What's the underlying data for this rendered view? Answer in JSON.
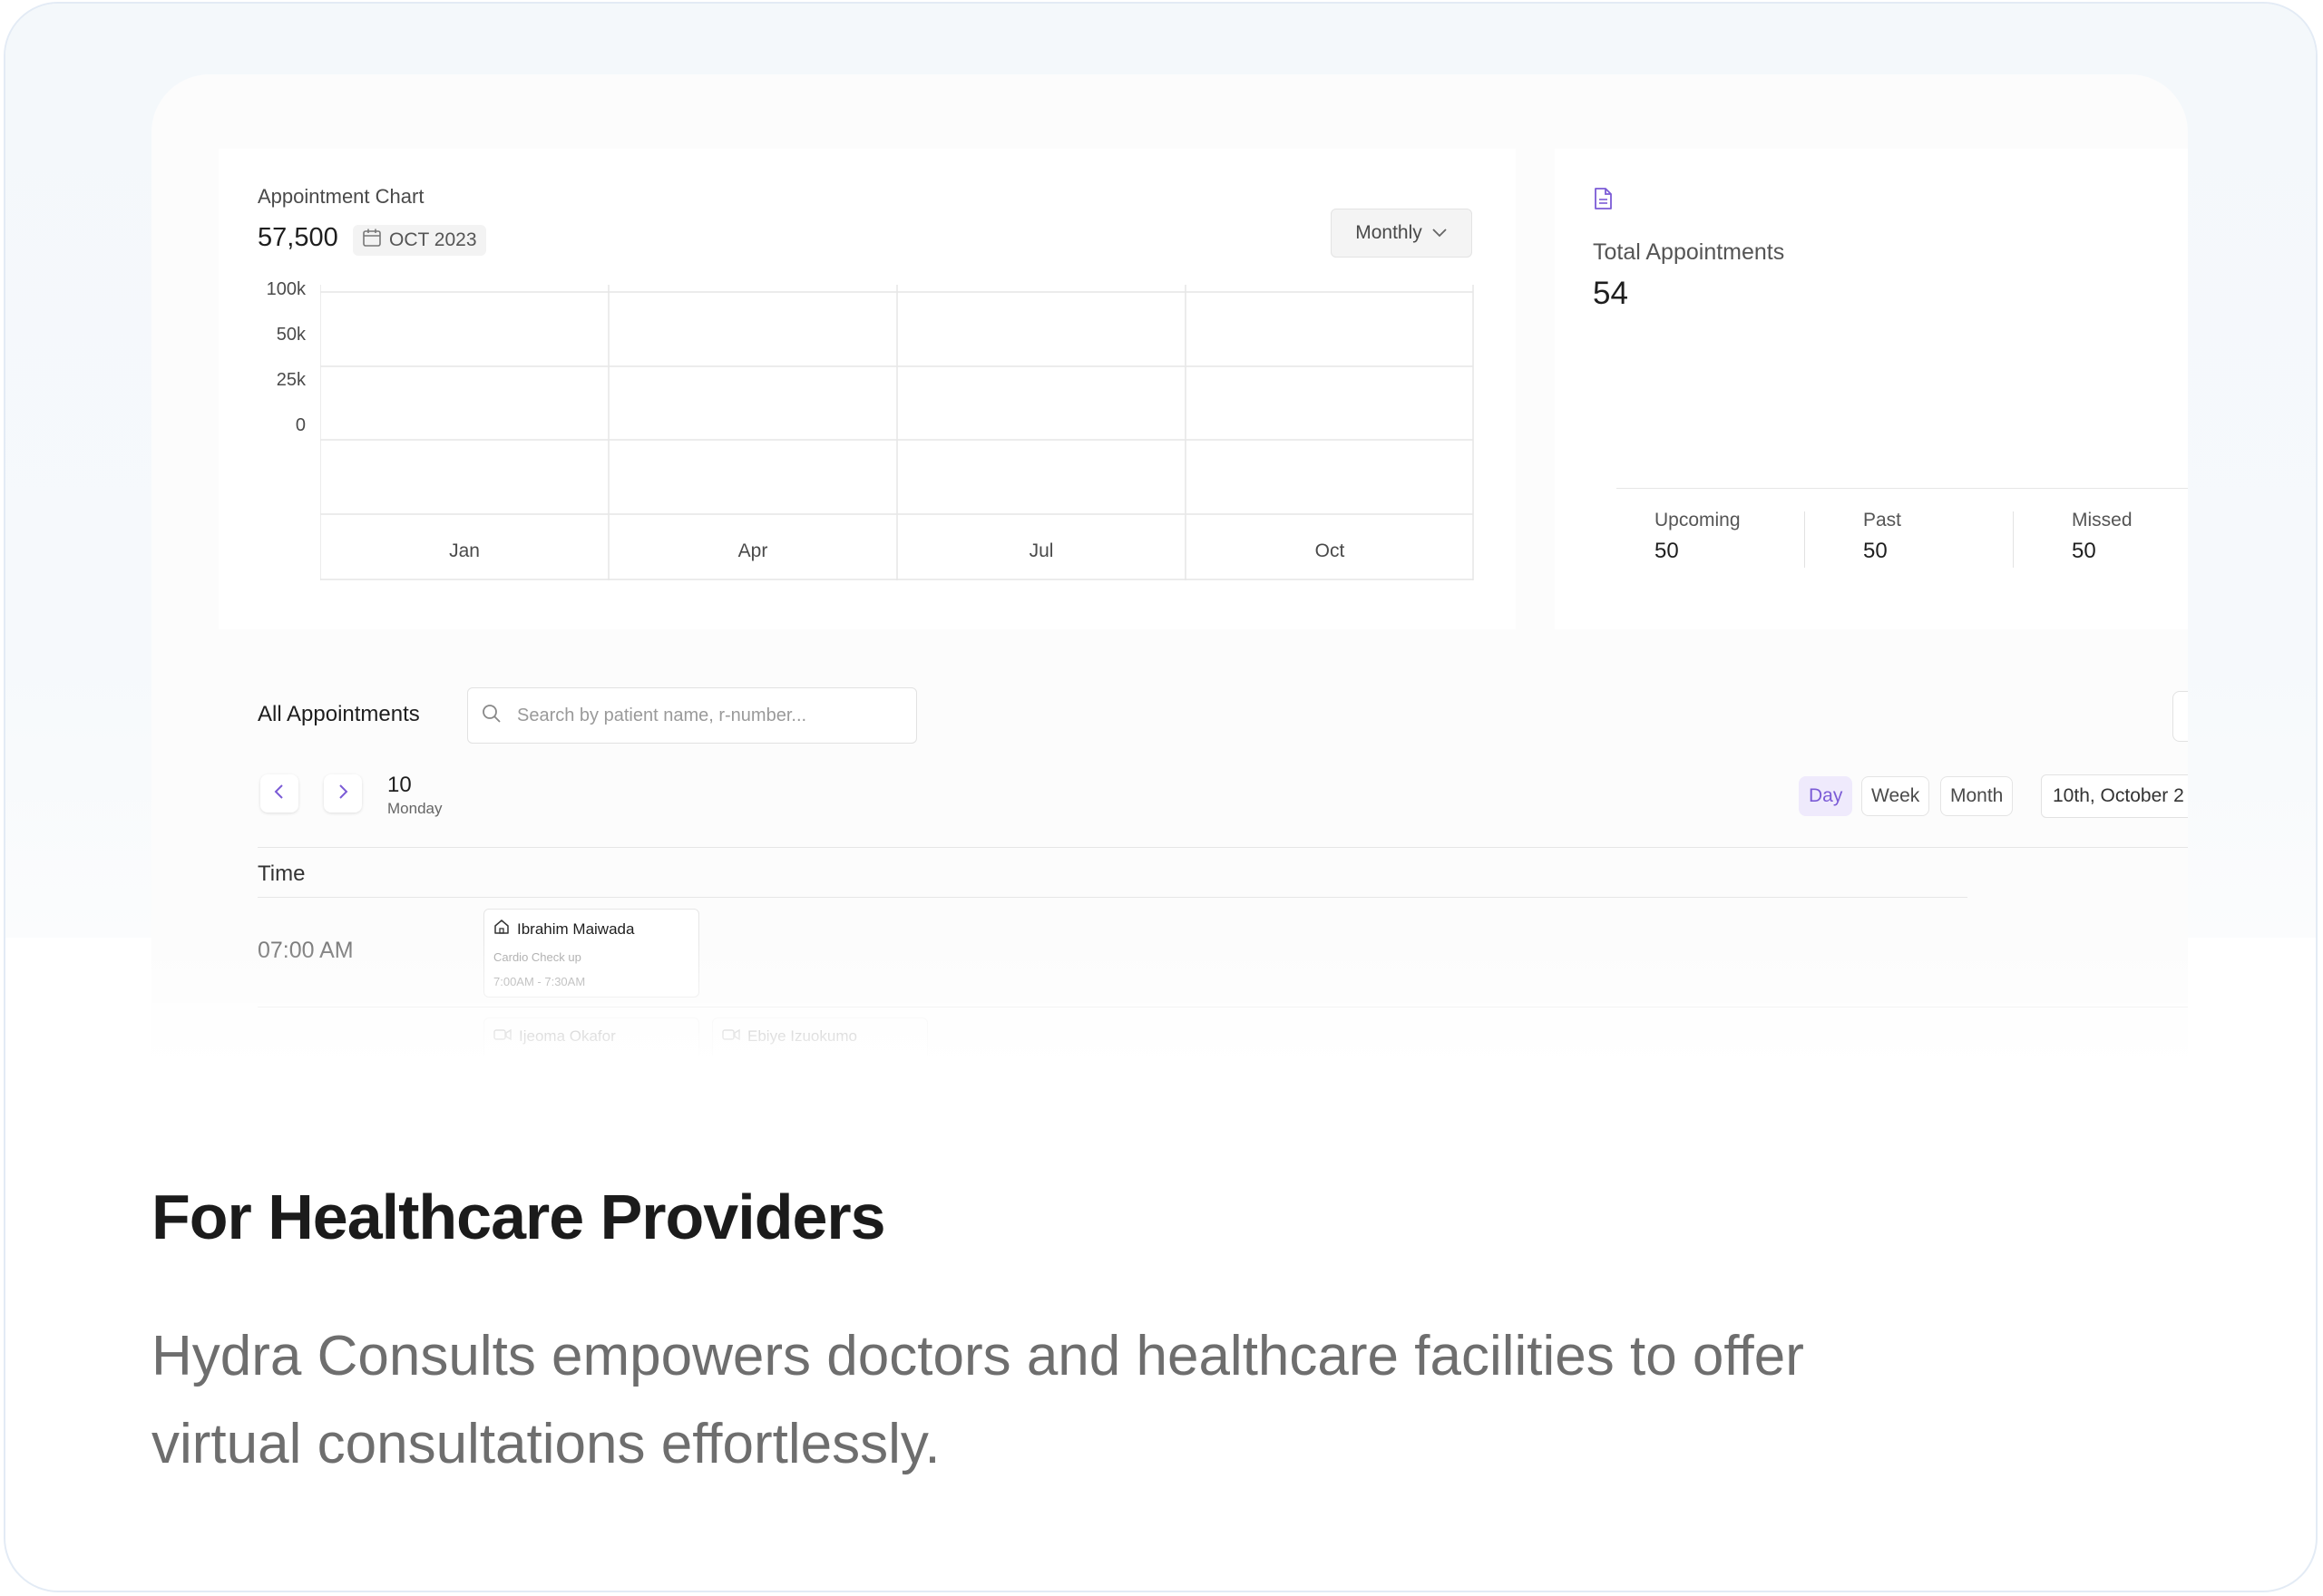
{
  "appointment_chart": {
    "title": "Appointment Chart",
    "total": "57,500",
    "date": "OCT 2023",
    "period_button": "Monthly",
    "y_ticks": [
      "100k",
      "50k",
      "25k",
      "0"
    ],
    "x_ticks": [
      "Jan",
      "Apr",
      "Jul",
      "Oct"
    ]
  },
  "stats": {
    "label": "Total Appointments",
    "value": "54",
    "upcoming_label": "Upcoming",
    "upcoming_value": "50",
    "past_label": "Past",
    "past_value": "50",
    "missed_label": "Missed",
    "missed_value": "50"
  },
  "appointments": {
    "title": "All Appointments",
    "search_placeholder": "Search by patient name, r-number...",
    "day_number": "10",
    "day_name": "Monday",
    "views": [
      "Day",
      "Week",
      "Month"
    ],
    "active_view": "Day",
    "date_field": "10th, October 2",
    "time_header": "Time",
    "slot_time": "07:00 AM",
    "events": [
      {
        "name": "Ibrahim Maiwada",
        "type": "Cardio Check up",
        "time": "7:00AM - 7:30AM",
        "icon": "home-icon"
      },
      {
        "name": "Ijeoma Okafor",
        "icon": "video-icon"
      },
      {
        "name": "Ebiye Izuokumo",
        "icon": "video-icon"
      }
    ]
  },
  "hero": {
    "title": "For Healthcare Providers",
    "description": "Hydra Consults empowers doctors and healthcare facilities to offer virtual consultations effortlessly."
  },
  "colors": {
    "accent": "#7b5bd6",
    "card_border": "#e3ebf5",
    "card_background": "#f4f8fb"
  }
}
